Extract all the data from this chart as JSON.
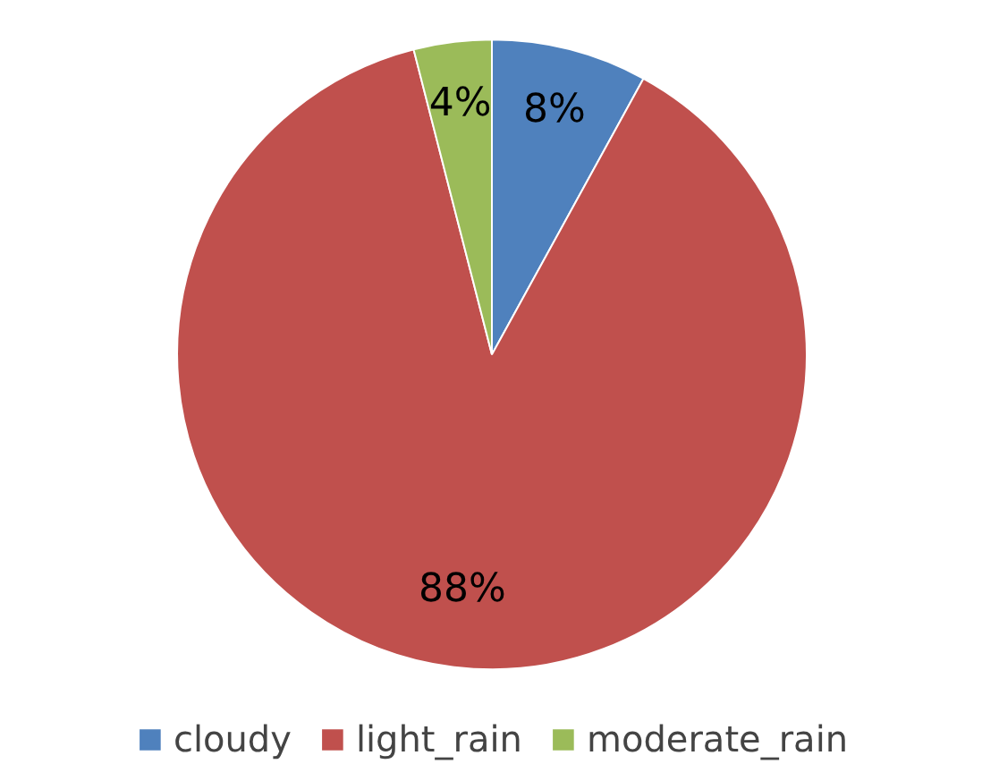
{
  "chart_data": {
    "type": "pie",
    "categories": [
      "cloudy",
      "light_rain",
      "moderate_rain"
    ],
    "values": [
      8,
      88,
      4
    ],
    "colors": [
      "#4f81bd",
      "#c0504d",
      "#9bbb59"
    ],
    "value_labels": [
      "8%",
      "88%",
      "4%"
    ],
    "legend": "bottom"
  }
}
